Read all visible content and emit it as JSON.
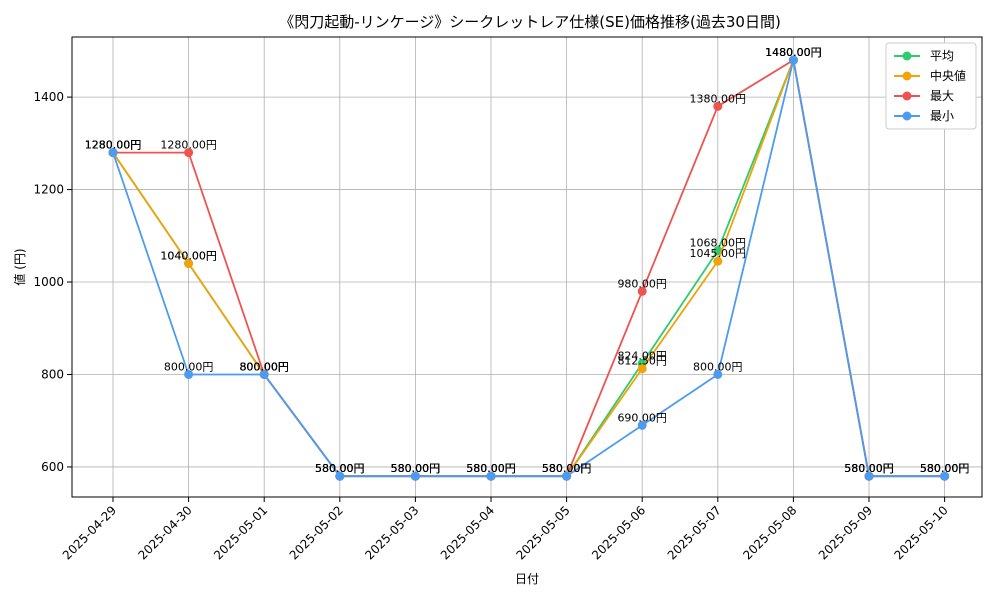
{
  "chart_data": {
    "type": "line",
    "title": "《閃刀起動-リンケージ》シークレットレア仕様(SE)価格推移(過去30日間)",
    "xlabel": "日付",
    "ylabel": "値 (円)",
    "ylim": [
      535,
      1530
    ],
    "yticks": [
      600,
      800,
      1000,
      1200,
      1400
    ],
    "grid": true,
    "legend_position": "top-right",
    "label_suffix": "円",
    "categories": [
      "2025-04-29",
      "2025-04-30",
      "2025-05-01",
      "2025-05-02",
      "2025-05-03",
      "2025-05-04",
      "2025-05-05",
      "2025-05-06",
      "2025-05-07",
      "2025-05-08",
      "2025-05-09",
      "2025-05-10"
    ],
    "series": [
      {
        "name": "平均",
        "color": "#2ecc71",
        "values": [
          1280,
          1040,
          800,
          580,
          580,
          580,
          580,
          824,
          1068,
          1480,
          580,
          580
        ]
      },
      {
        "name": "中央値",
        "color": "#f0a30a",
        "values": [
          1280,
          1040,
          800,
          580,
          580,
          580,
          580,
          812.5,
          1045,
          1480,
          580,
          580
        ]
      },
      {
        "name": "最大",
        "color": "#ef5350",
        "values": [
          1280,
          1280,
          800,
          580,
          580,
          580,
          580,
          980,
          1380,
          1480,
          580,
          580
        ]
      },
      {
        "name": "最小",
        "color": "#4d9bf0",
        "values": [
          1280,
          800,
          800,
          580,
          580,
          580,
          580,
          690,
          800,
          1480,
          580,
          580
        ]
      }
    ]
  }
}
